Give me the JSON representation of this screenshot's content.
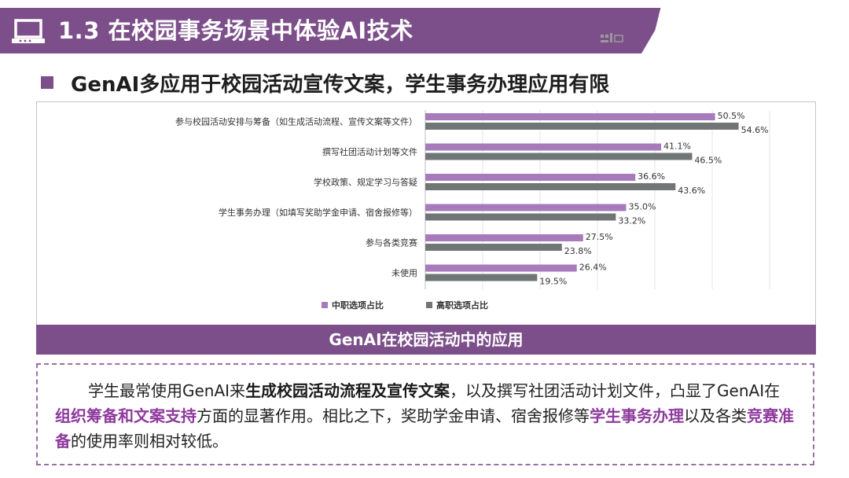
{
  "header": {
    "title": "1.3 在校园事务场景中体验AI技术",
    "subtitle": "GenAI多应用于校园活动宣传文案，学生事务办理应用有限"
  },
  "colors": {
    "brand": "#7c4f8a",
    "series_vocational": "#a77bbb",
    "series_high": "#6f7675",
    "highlight": "#8e3a9d"
  },
  "icons": {
    "title_icon": "laptop-icon"
  },
  "chart_data": {
    "type": "bar",
    "orientation": "horizontal",
    "categories": [
      "参与校园活动安排与筹备（如生成活动流程、宣传文案等文件）",
      "撰写社团活动计划等文件",
      "学校政策、规定学习与答疑",
      "学生事务办理（如填写奖助学金申请、宿舍报修等）",
      "参与各类竞赛",
      "未使用"
    ],
    "series": [
      {
        "name": "中职选项占比",
        "values": [
          50.5,
          41.1,
          36.6,
          35.0,
          27.5,
          26.4
        ],
        "labels": [
          "50.5%",
          "41.1%",
          "36.6%",
          "35.0%",
          "27.5%",
          "26.4%"
        ]
      },
      {
        "name": "高职选项占比",
        "values": [
          54.6,
          46.5,
          43.6,
          33.2,
          23.8,
          19.5
        ],
        "labels": [
          "54.6%",
          "46.5%",
          "43.6%",
          "33.2%",
          "23.8%",
          "19.5%"
        ]
      }
    ],
    "xlim": [
      0,
      60
    ],
    "grid": true,
    "legend_position": "bottom"
  },
  "section_title": "GenAI在校园活动中的应用",
  "description": {
    "p1": "学生最常使用GenAI来",
    "b1": "生成校园活动流程及宣传文案",
    "p2": "，以及撰写社团活动计划文件，凸显了GenAI在",
    "h1": "组织筹备和文案支持",
    "p3": "方面的显著作用。相比之下，奖助学金申请、宿舍报修等",
    "h2": "学生事务办理",
    "p4": "以及各类",
    "h3": "竞赛准备",
    "p5": "的使用率则相对较低。"
  }
}
